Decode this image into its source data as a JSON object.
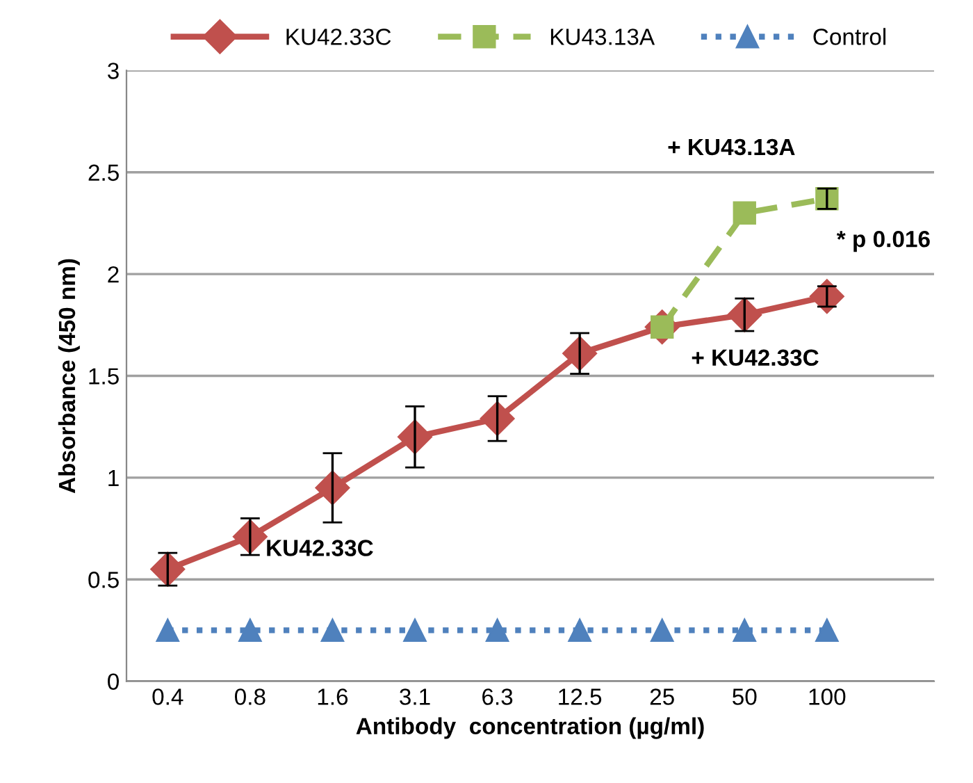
{
  "chart_data": {
    "type": "line",
    "xlabel": "Antibody  concentration (µg/ml)",
    "ylabel": "Absorbance (450 nm)",
    "categories": [
      "0.4",
      "0.8",
      "1.6",
      "3.1",
      "6.3",
      "12.5",
      "25",
      "50",
      "100"
    ],
    "series": [
      {
        "name": "KU42.33C",
        "color": "#c0504d",
        "marker": "diamond",
        "line_style": "solid",
        "values": [
          0.55,
          0.71,
          0.95,
          1.2,
          1.29,
          1.61,
          1.74,
          1.8,
          1.89
        ],
        "errors": [
          0.08,
          0.09,
          0.17,
          0.15,
          0.11,
          0.1,
          null,
          0.08,
          0.05
        ]
      },
      {
        "name": "KU43.13A",
        "color": "#9bbb59",
        "marker": "square",
        "line_style": "dashed",
        "values": [
          null,
          null,
          null,
          null,
          null,
          null,
          1.74,
          2.3,
          2.37
        ],
        "errors": [
          null,
          null,
          null,
          null,
          null,
          null,
          null,
          null,
          0.05
        ]
      },
      {
        "name": "Control",
        "color": "#4f81bd",
        "marker": "triangle",
        "line_style": "dotted",
        "values": [
          0.25,
          0.25,
          0.25,
          0.25,
          0.25,
          0.25,
          0.25,
          0.25,
          0.25
        ]
      }
    ],
    "ylim": [
      0,
      3
    ],
    "yticks": [
      0,
      0.5,
      1,
      1.5,
      2,
      2.5,
      3
    ],
    "grid": "y",
    "legend": "top",
    "annotations": [
      {
        "text": "KU42.33C",
        "x": "0.8",
        "y": 0.71
      },
      {
        "text": "+ KU42.33C",
        "x": "25",
        "y": 1.74
      },
      {
        "text": "+ KU43.13A",
        "x": "50",
        "y": 2.3
      },
      {
        "text": "* p 0.016",
        "x": "100",
        "y": 2.37
      }
    ]
  }
}
